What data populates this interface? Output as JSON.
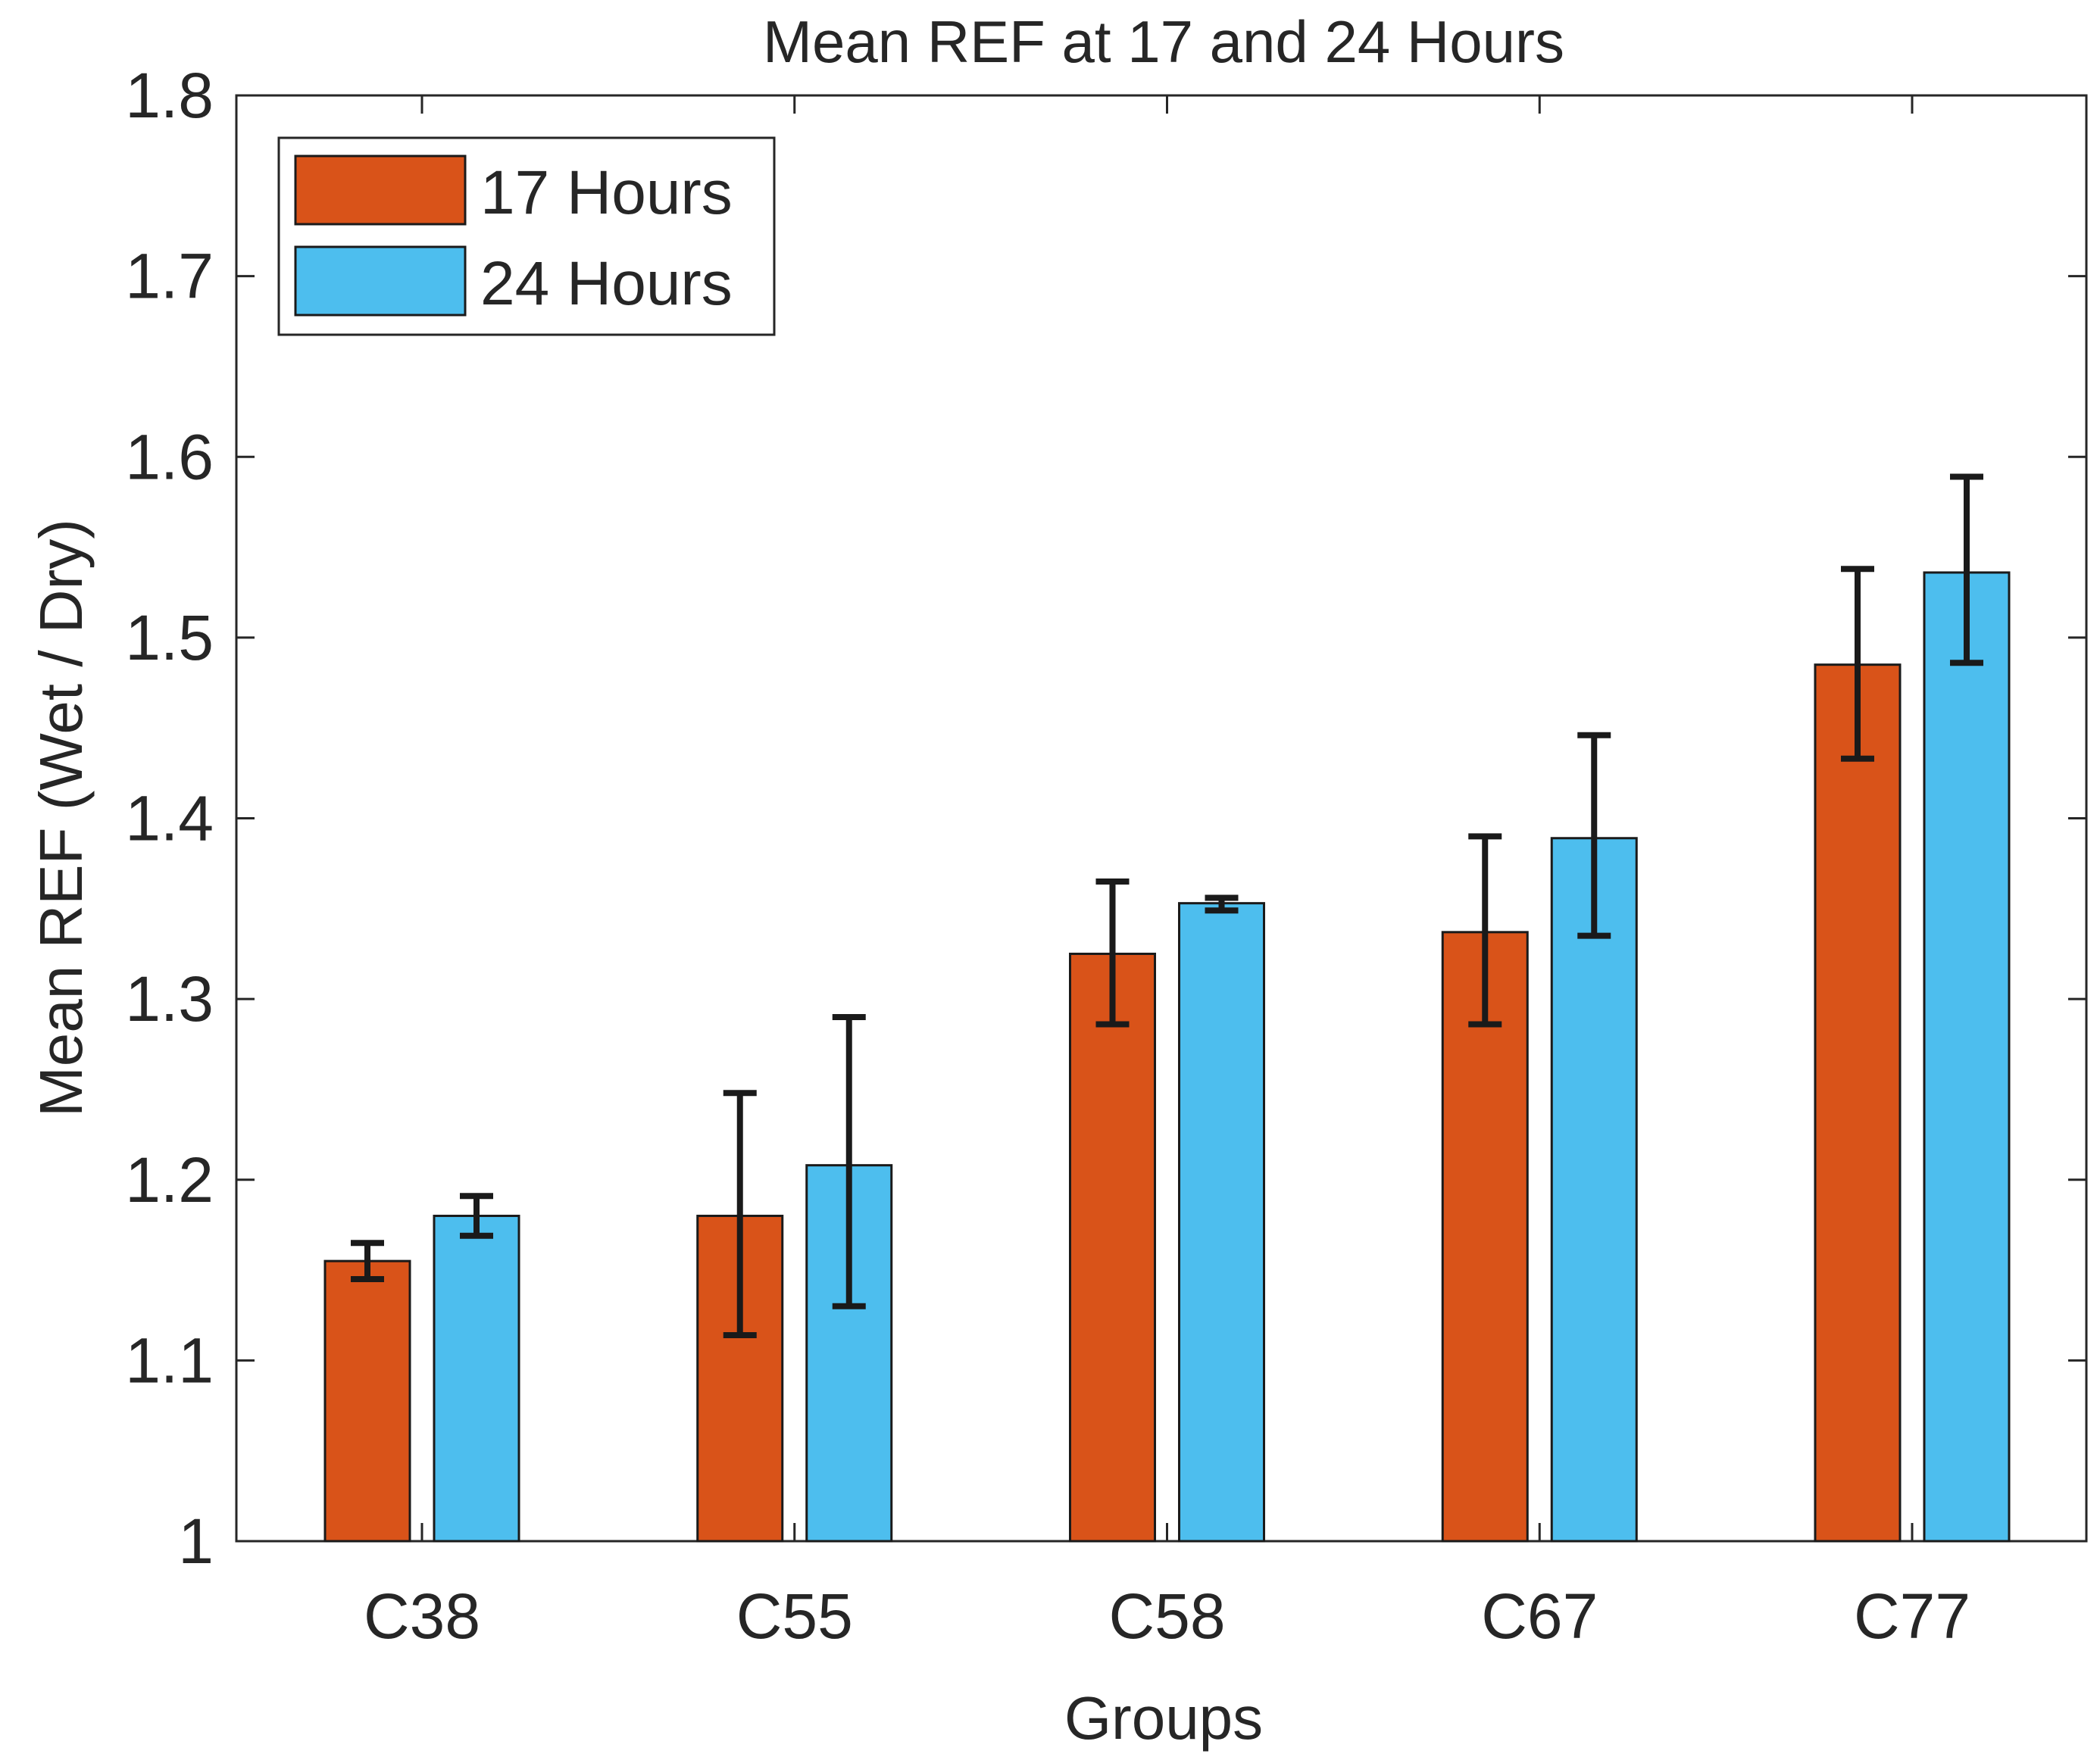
{
  "chart_data": {
    "type": "bar",
    "title": "Mean REF at 17 and 24 Hours",
    "xlabel": "Groups",
    "ylabel": "Mean REF (Wet / Dry)",
    "ylim": [
      1,
      1.8
    ],
    "yticks": [
      "1",
      "1.1",
      "1.2",
      "1.3",
      "1.4",
      "1.5",
      "1.6",
      "1.7",
      "1.8"
    ],
    "categories": [
      "C38",
      "C55",
      "C58",
      "C67",
      "C77"
    ],
    "series": [
      {
        "name": "17 Hours",
        "color": "#D95319",
        "values": [
          1.155,
          1.18,
          1.325,
          1.337,
          1.485
        ],
        "error_low": [
          1.145,
          1.114,
          1.286,
          1.286,
          1.433
        ],
        "error_high": [
          1.165,
          1.248,
          1.365,
          1.39,
          1.538
        ]
      },
      {
        "name": "24 Hours",
        "color": "#4DBEEE",
        "values": [
          1.18,
          1.208,
          1.353,
          1.389,
          1.536
        ],
        "error_low": [
          1.169,
          1.13,
          1.349,
          1.335,
          1.486
        ],
        "error_high": [
          1.191,
          1.29,
          1.356,
          1.446,
          1.589
        ]
      }
    ],
    "grid": false,
    "legend_position": "top-left"
  }
}
